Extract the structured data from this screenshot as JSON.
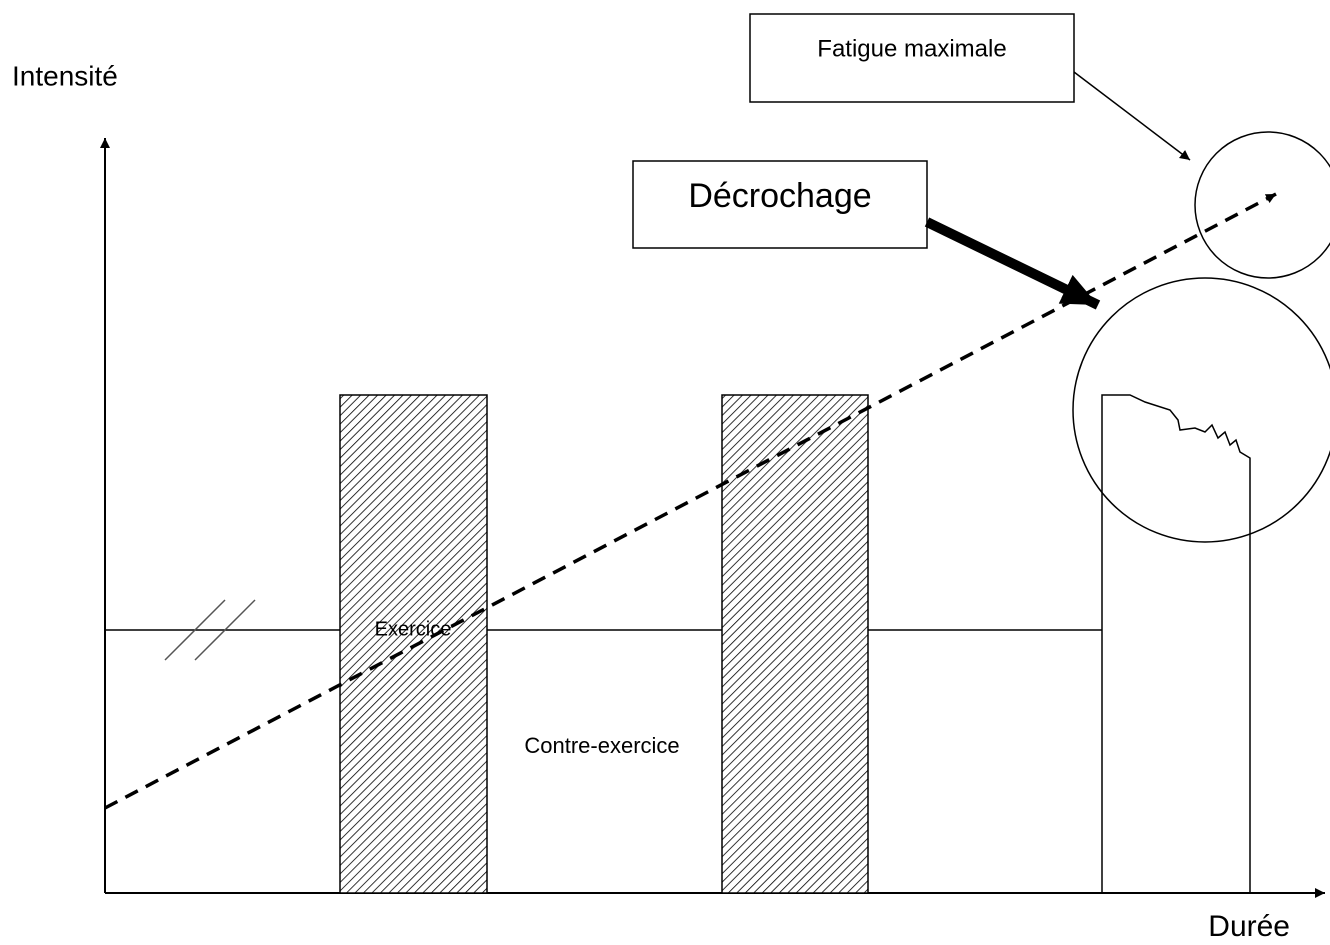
{
  "axes": {
    "y_label": "Intensité",
    "x_label": "Durée"
  },
  "callouts": {
    "fatigue": "Fatigue maximale",
    "decrochage": "Décrochage"
  },
  "labels": {
    "exercise": "Exercice",
    "counter_exercise": "Contre-exercice"
  }
}
